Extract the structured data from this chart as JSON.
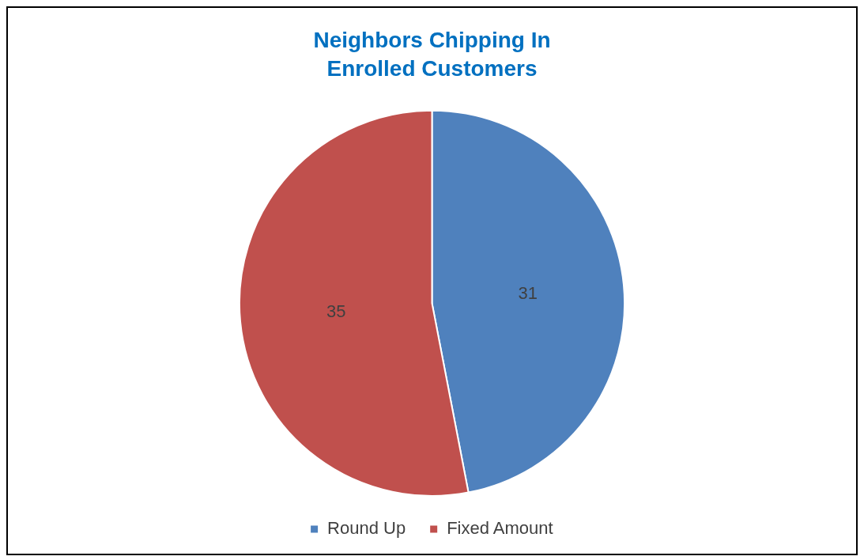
{
  "chart_data": {
    "type": "pie",
    "title": "Neighbors Chipping In\nEnrolled Customers",
    "categories": [
      "Round Up",
      "Fixed Amount"
    ],
    "values": [
      31,
      35
    ],
    "colors": [
      "#4f81bd",
      "#c0504d"
    ],
    "data_labels": true,
    "legend": "bottom"
  }
}
